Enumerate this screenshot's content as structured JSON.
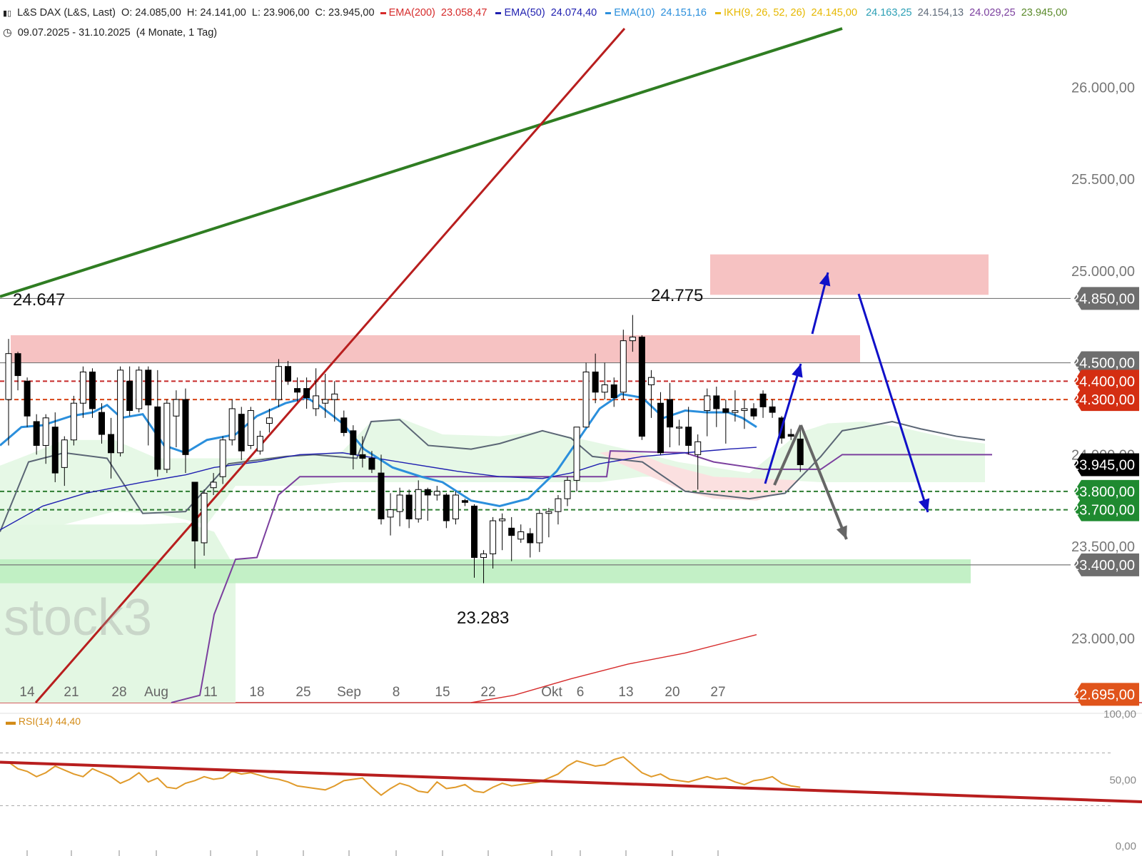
{
  "header": {
    "icon": "candlestick-icon",
    "instrument": "L&S DAX (L&S, Last)",
    "ohlc": [
      {
        "label": "O:",
        "value": "24.085,00"
      },
      {
        "label": "H:",
        "value": "24.141,00"
      },
      {
        "label": "L:",
        "value": "23.906,00"
      },
      {
        "label": "C:",
        "value": "23.945,00"
      }
    ],
    "indicators": [
      {
        "name": "EMA(200)",
        "value": "23.058,47",
        "color": "#d62b2b"
      },
      {
        "name": "EMA(50)",
        "value": "24.074,40",
        "color": "#1f1fb0"
      },
      {
        "name": "EMA(10)",
        "value": "24.151,16",
        "color": "#2b8fdc"
      },
      {
        "name": "IKH(9, 26, 52, 26)",
        "value": "24.145,00",
        "color": "#e6b800"
      }
    ],
    "ikh_extra": [
      {
        "value": "24.163,25",
        "color": "#2b9fb5"
      },
      {
        "value": "24.154,13",
        "color": "#5f6b7a"
      },
      {
        "value": "24.029,25",
        "color": "#7b3f9e"
      },
      {
        "value": "23.945,00",
        "color": "#5a8a2a"
      }
    ],
    "period_icon": "clock-icon",
    "period": "09.07.2025 - 31.10.2025",
    "period_detail": "(4 Monate, 1 Tag)"
  },
  "chart_data": {
    "type": "candlestick",
    "x_tick_labels": [
      "14",
      "21",
      "28",
      "Aug",
      "11",
      "18",
      "25",
      "Sep",
      "8",
      "15",
      "22",
      "Okt",
      "6",
      "13",
      "20",
      "27"
    ],
    "y_tick_labels": [
      {
        "value": 26000,
        "text": "26.000,00"
      },
      {
        "value": 25500,
        "text": "25.500,00"
      },
      {
        "value": 25000,
        "text": "25.000,00"
      },
      {
        "value": 24000,
        "text": "24.000,00"
      },
      {
        "value": 23500,
        "text": "23.500,00"
      },
      {
        "value": 23000,
        "text": "23.000,00"
      }
    ],
    "ylim": [
      22650,
      26300
    ],
    "price_tags": [
      {
        "value": 24850,
        "text": "24.850,00",
        "color": "#6e6e6e"
      },
      {
        "value": 24500,
        "text": "24.500,00",
        "color": "#6e6e6e"
      },
      {
        "value": 24400,
        "text": "24.400,00",
        "color": "#d42e12"
      },
      {
        "value": 24300,
        "text": "24.300,00",
        "color": "#d42e12"
      },
      {
        "value": 23945,
        "text": "23.945,00",
        "color": "#000000"
      },
      {
        "value": 23800,
        "text": "23.800,00",
        "color": "#1f8a30"
      },
      {
        "value": 23700,
        "text": "23.700,00",
        "color": "#1f8a30"
      },
      {
        "value": 23400,
        "text": "23.400,00",
        "color": "#6e6e6e"
      },
      {
        "value": 22695,
        "text": "22.695,00",
        "color": "#e0541b"
      }
    ],
    "annotations": [
      {
        "text": "24.647",
        "value": 24647
      },
      {
        "text": "24.775",
        "value": 24775
      },
      {
        "text": "23.283",
        "value": 23283
      }
    ],
    "candles": [
      [
        24300,
        24630,
        24050,
        24550
      ],
      [
        24550,
        24560,
        24350,
        24430
      ],
      [
        24400,
        24420,
        24150,
        24210
      ],
      [
        24180,
        24220,
        24000,
        24050
      ],
      [
        24050,
        24220,
        23950,
        24200
      ],
      [
        24150,
        24230,
        23850,
        23900
      ],
      [
        23930,
        24100,
        23830,
        24080
      ],
      [
        24080,
        24320,
        24050,
        24280
      ],
      [
        24280,
        24480,
        24200,
        24450
      ],
      [
        24450,
        24470,
        24200,
        24250
      ],
      [
        24230,
        24280,
        24060,
        24110
      ],
      [
        24110,
        24200,
        23870,
        24010
      ],
      [
        24010,
        24480,
        23990,
        24460
      ],
      [
        24400,
        24480,
        24210,
        24240
      ],
      [
        24250,
        24480,
        24230,
        24460
      ],
      [
        24460,
        24480,
        24050,
        24270
      ],
      [
        24260,
        24460,
        23880,
        23920
      ],
      [
        23920,
        24300,
        23900,
        24280
      ],
      [
        24210,
        24350,
        24040,
        24300
      ],
      [
        24300,
        24360,
        23900,
        24000
      ],
      [
        23850,
        23850,
        23380,
        23530
      ],
      [
        23520,
        23810,
        23450,
        23790
      ],
      [
        23820,
        23900,
        23780,
        23850
      ],
      [
        23880,
        24100,
        23840,
        24080
      ],
      [
        24080,
        24300,
        24050,
        24250
      ],
      [
        24220,
        24260,
        23970,
        24020
      ],
      [
        24050,
        24260,
        24030,
        24240
      ],
      [
        24020,
        24130,
        24000,
        24100
      ],
      [
        24170,
        24250,
        24120,
        24200
      ],
      [
        24300,
        24520,
        24260,
        24480
      ],
      [
        24480,
        24510,
        24380,
        24400
      ],
      [
        24360,
        24420,
        24290,
        24340
      ],
      [
        24360,
        24420,
        24250,
        24310
      ],
      [
        24250,
        24470,
        24210,
        24320
      ],
      [
        24280,
        24440,
        24200,
        24300
      ],
      [
        24300,
        24400,
        24180,
        24330
      ],
      [
        24200,
        24240,
        24100,
        24120
      ],
      [
        24130,
        24160,
        23920,
        24000
      ],
      [
        24000,
        24100,
        23930,
        23980
      ],
      [
        23980,
        24020,
        23900,
        23920
      ],
      [
        23900,
        24000,
        23620,
        23650
      ],
      [
        23660,
        23790,
        23560,
        23700
      ],
      [
        23690,
        23820,
        23610,
        23780
      ],
      [
        23780,
        23810,
        23600,
        23650
      ],
      [
        23650,
        23860,
        23630,
        23810
      ],
      [
        23810,
        23820,
        23640,
        23780
      ],
      [
        23780,
        23830,
        23750,
        23800
      ],
      [
        23780,
        23790,
        23600,
        23640
      ],
      [
        23650,
        23800,
        23620,
        23780
      ],
      [
        23750,
        23760,
        23720,
        23740
      ],
      [
        23720,
        23730,
        23330,
        23440
      ],
      [
        23440,
        23480,
        23300,
        23460
      ],
      [
        23460,
        23660,
        23380,
        23640
      ],
      [
        23640,
        23680,
        23480,
        23650
      ],
      [
        23600,
        23660,
        23420,
        23560
      ],
      [
        23540,
        23620,
        23520,
        23580
      ],
      [
        23570,
        23600,
        23440,
        23520
      ],
      [
        23520,
        23700,
        23470,
        23680
      ],
      [
        23680,
        23710,
        23550,
        23690
      ],
      [
        23690,
        23780,
        23620,
        23760
      ],
      [
        23760,
        23880,
        23720,
        23860
      ],
      [
        23860,
        24150,
        23800,
        24150
      ],
      [
        24150,
        24500,
        24150,
        24450
      ],
      [
        24450,
        24550,
        24280,
        24340
      ],
      [
        24340,
        24500,
        24300,
        24380
      ],
      [
        24380,
        24420,
        24260,
        24310
      ],
      [
        24340,
        24680,
        24300,
        24620
      ],
      [
        24620,
        24760,
        24560,
        24640
      ],
      [
        24640,
        24650,
        24080,
        24100
      ],
      [
        24380,
        24460,
        24200,
        24420
      ],
      [
        24280,
        24340,
        24000,
        24010
      ],
      [
        24300,
        24390,
        24040,
        24150
      ],
      [
        24150,
        24190,
        24050,
        24150
      ],
      [
        24150,
        24260,
        24000,
        24050
      ],
      [
        24000,
        24110,
        23810,
        24070
      ],
      [
        24240,
        24360,
        24100,
        24320
      ],
      [
        24320,
        24370,
        24150,
        24250
      ],
      [
        24250,
        24300,
        24060,
        24230
      ],
      [
        24230,
        24350,
        24180,
        24240
      ],
      [
        24240,
        24300,
        24140,
        24250
      ],
      [
        24250,
        24280,
        24190,
        24210
      ],
      [
        24330,
        24350,
        24200,
        24260
      ],
      [
        24260,
        24300,
        24200,
        24230
      ],
      [
        24200,
        24210,
        24060,
        24090
      ],
      [
        24110,
        24140,
        24080,
        24100
      ],
      [
        24085,
        24141,
        23906,
        23945
      ]
    ],
    "rsi": {
      "label": "RSI(14)",
      "value": "44,40",
      "levels": [
        30,
        70
      ],
      "y_tick_labels": [
        "100,00",
        "50,00",
        "0,00"
      ],
      "values": [
        63,
        58,
        56,
        52,
        55,
        60,
        57,
        54,
        52,
        58,
        55,
        52,
        47,
        50,
        55,
        48,
        51,
        44,
        43,
        47,
        49,
        52,
        50,
        51,
        56,
        54,
        55,
        53,
        51,
        50,
        48,
        45,
        44,
        43,
        42,
        45,
        49,
        50,
        51,
        44,
        38,
        43,
        47,
        45,
        41,
        40,
        48,
        43,
        44,
        46,
        41,
        40,
        44,
        47,
        45,
        46,
        47,
        48,
        51,
        54,
        60,
        64,
        62,
        60,
        61,
        65,
        67,
        61,
        55,
        52,
        54,
        50,
        49,
        48,
        50,
        52,
        50,
        51,
        48,
        46,
        49,
        50,
        52,
        47,
        45,
        44
      ]
    }
  },
  "watermark": "stock3",
  "colors": {
    "resistance_zone": "#f5b7b7",
    "support_zone": "#bdeec0",
    "cloud_bull": "#e3f7e3",
    "cloud_bear": "#fbe0e0",
    "candle_up": "#ffffff",
    "candle_down": "#000000",
    "arrow_blue": "#1010c8",
    "arrow_grey": "#666666",
    "trend_green": "#2f7d22",
    "trend_red": "#b81e1e"
  }
}
